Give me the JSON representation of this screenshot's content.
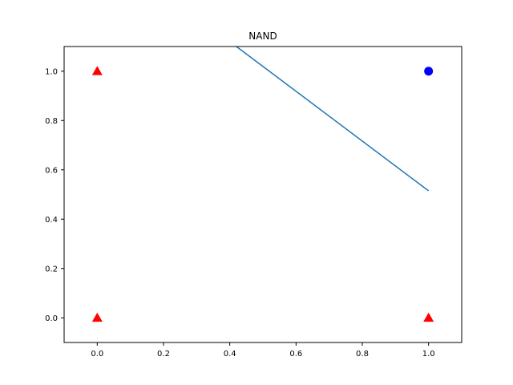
{
  "chart_data": {
    "type": "scatter",
    "title": "NAND",
    "xlabel": "",
    "ylabel": "",
    "xlim": [
      -0.1,
      1.1
    ],
    "ylim": [
      -0.1,
      1.1
    ],
    "grid": false,
    "legend": "none",
    "x_ticks": [
      "0.0",
      "0.2",
      "0.4",
      "0.6",
      "0.8",
      "1.0"
    ],
    "y_ticks": [
      "0.0",
      "0.2",
      "0.4",
      "0.6",
      "0.8",
      "1.0"
    ],
    "series": [
      {
        "marker": "triangle",
        "color": "#ff0000",
        "points": [
          [
            0,
            1
          ],
          [
            0,
            0
          ],
          [
            1,
            0
          ]
        ]
      },
      {
        "marker": "circle",
        "color": "#0000ff",
        "points": [
          [
            1,
            1
          ]
        ]
      }
    ],
    "lines": [
      {
        "color": "#1f77b4",
        "points": [
          [
            0.42,
            1.1
          ],
          [
            1.0,
            0.515
          ]
        ]
      }
    ]
  }
}
